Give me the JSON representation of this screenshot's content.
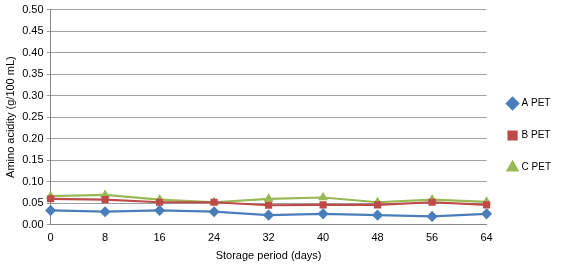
{
  "chart_data": {
    "type": "line",
    "x_label": "Storage period (days)",
    "y_label": "Amino acidity (g/100 mL)",
    "categories": [
      "0",
      "8",
      "16",
      "24",
      "32",
      "40",
      "48",
      "56",
      "64"
    ],
    "series": [
      {
        "name": "A PET",
        "color": "#4a7ebb",
        "marker": "diamond",
        "values": [
          0.033,
          0.03,
          0.033,
          0.03,
          0.022,
          0.025,
          0.022,
          0.019,
          0.025
        ]
      },
      {
        "name": "B PET",
        "color": "#be4b48",
        "marker": "square",
        "values": [
          0.06,
          0.058,
          0.052,
          0.052,
          0.045,
          0.046,
          0.046,
          0.052,
          0.046
        ]
      },
      {
        "name": "C PET",
        "color": "#98b954",
        "marker": "triangle",
        "values": [
          0.066,
          0.069,
          0.058,
          0.052,
          0.06,
          0.063,
          0.052,
          0.058,
          0.053
        ]
      }
    ],
    "ylim": [
      0,
      0.5
    ],
    "yticks": [
      {
        "value": 0,
        "label": "0.00"
      },
      {
        "value": 0.05,
        "label": "0.05"
      },
      {
        "value": 0.1,
        "label": "0.10"
      },
      {
        "value": 0.15,
        "label": "0.15"
      },
      {
        "value": 0.2,
        "label": "0.20"
      },
      {
        "value": 0.25,
        "label": "0.25"
      },
      {
        "value": 0.3,
        "label": "0.30"
      },
      {
        "value": 0.35,
        "label": "0.35"
      },
      {
        "value": 0.4,
        "label": "0.40"
      },
      {
        "value": 0.45,
        "label": "0.45"
      },
      {
        "value": 0.5,
        "label": "0.50"
      }
    ],
    "grid": true,
    "legend": "right"
  }
}
